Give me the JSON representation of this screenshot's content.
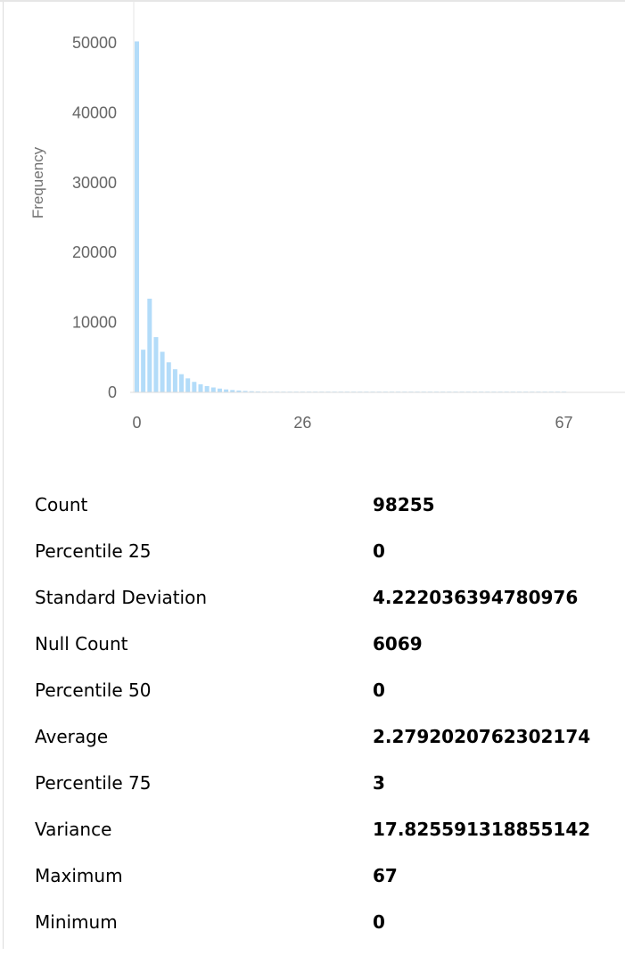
{
  "chart_data": {
    "type": "bar",
    "title": "",
    "xlabel": "",
    "ylabel": "Frequency",
    "ylim": [
      0,
      55000
    ],
    "y_ticks": [
      "0",
      "10000",
      "20000",
      "30000",
      "40000",
      "50000"
    ],
    "x_ticks": [
      "0",
      "26",
      "67"
    ],
    "color": "#b3dcf9",
    "categories": [
      "0",
      "1",
      "2",
      "3",
      "4",
      "5",
      "6",
      "7",
      "8",
      "9",
      "10",
      "11",
      "12",
      "13",
      "14",
      "15",
      "16",
      "17",
      "18",
      "19",
      "20",
      "21",
      "22",
      "23",
      "24",
      "25",
      "26",
      "27",
      "28",
      "29",
      "30",
      "31",
      "32",
      "33",
      "34",
      "35",
      "36",
      "37",
      "38",
      "39",
      "40",
      "41",
      "42",
      "43",
      "44",
      "45",
      "46",
      "47",
      "48",
      "49",
      "50",
      "51",
      "52",
      "53",
      "54",
      "55",
      "56",
      "57",
      "58",
      "59",
      "60",
      "61",
      "62",
      "63",
      "64",
      "65",
      "66",
      "67"
    ],
    "values": [
      50200,
      6100,
      13400,
      7900,
      5800,
      4300,
      3300,
      2600,
      2000,
      1500,
      1150,
      900,
      700,
      540,
      420,
      330,
      260,
      200,
      160,
      125,
      100,
      80,
      62,
      50,
      40,
      32,
      25,
      20,
      16,
      13,
      10,
      8,
      6,
      5,
      4,
      3,
      3,
      2,
      2,
      1,
      1,
      1,
      1,
      1,
      1,
      1,
      1,
      1,
      1,
      1,
      1,
      1,
      1,
      1,
      1,
      1,
      1,
      1,
      1,
      1,
      1,
      1,
      1,
      1,
      1,
      1,
      1,
      1
    ],
    "grid": false
  },
  "stats": [
    {
      "label": "Count",
      "value": "98255"
    },
    {
      "label": "Percentile 25",
      "value": "0"
    },
    {
      "label": "Standard Deviation",
      "value": "4.222036394780976"
    },
    {
      "label": "Null Count",
      "value": "6069"
    },
    {
      "label": "Percentile 50",
      "value": "0"
    },
    {
      "label": "Average",
      "value": "2.2792020762302174"
    },
    {
      "label": "Percentile 75",
      "value": "3"
    },
    {
      "label": "Variance",
      "value": "17.825591318855142"
    },
    {
      "label": "Maximum",
      "value": "67"
    },
    {
      "label": "Minimum",
      "value": "0"
    }
  ]
}
